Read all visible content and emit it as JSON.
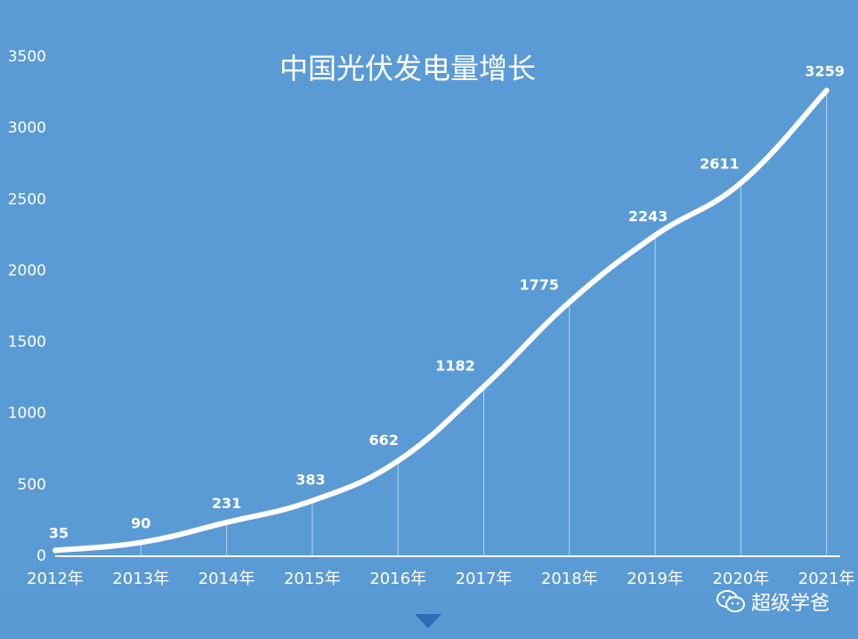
{
  "chart_data": {
    "type": "line",
    "title": "中国光伏发电量增长",
    "categories": [
      "2012年",
      "2013年",
      "2014年",
      "2015年",
      "2016年",
      "2017年",
      "2018年",
      "2019年",
      "2020年",
      "2021年"
    ],
    "values": [
      35,
      90,
      231,
      383,
      662,
      1182,
      1775,
      2243,
      2611,
      3259
    ],
    "data_labels": [
      "35",
      "90",
      "231",
      "383",
      "662",
      "1182",
      "1775",
      "2243",
      "2611",
      "3259"
    ],
    "yticks": [
      "0",
      "500",
      "1000",
      "1500",
      "2000",
      "2500",
      "3000",
      "3500"
    ],
    "ylim": [
      0,
      3500
    ],
    "grid": false,
    "line_color": "#ffffff",
    "background_color": "#5b9bd5"
  },
  "watermark": {
    "text": "超级学爸",
    "icon": "wechat-icon"
  }
}
